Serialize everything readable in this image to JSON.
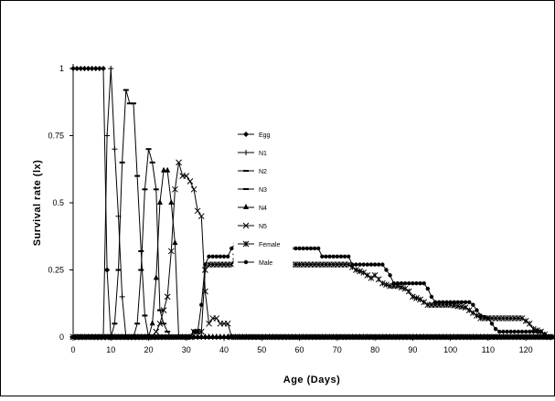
{
  "chart_data": {
    "type": "line",
    "xlabel": "Age (Days)",
    "ylabel": "Survival rate (lx)",
    "xlim": [
      0,
      127
    ],
    "ylim": [
      0,
      1
    ],
    "xticks": [
      "0",
      "10",
      "20",
      "30",
      "40",
      "50",
      "60",
      "70",
      "80",
      "90",
      "100",
      "110",
      "120"
    ],
    "yticks": [
      "0",
      "0.25",
      "0.5",
      "0.75",
      "1"
    ],
    "grid": false,
    "legend_position": "upper-middle",
    "series": [
      {
        "name": "Egg",
        "marker": "diamond",
        "points": [
          [
            0,
            1
          ],
          [
            1,
            1
          ],
          [
            2,
            1
          ],
          [
            3,
            1
          ],
          [
            4,
            1
          ],
          [
            5,
            1
          ],
          [
            6,
            1
          ],
          [
            7,
            1
          ],
          [
            8,
            1
          ],
          [
            9,
            0.25
          ],
          [
            10,
            0
          ],
          [
            11,
            0
          ],
          [
            20,
            0
          ],
          [
            40,
            0
          ],
          [
            127,
            0
          ]
        ]
      },
      {
        "name": "N1",
        "marker": "plus",
        "points": [
          [
            0,
            0
          ],
          [
            8,
            0
          ],
          [
            9,
            0.75
          ],
          [
            10,
            1
          ],
          [
            11,
            0.7
          ],
          [
            12,
            0.45
          ],
          [
            13,
            0.15
          ],
          [
            14,
            0
          ],
          [
            16,
            0
          ],
          [
            127,
            0
          ]
        ]
      },
      {
        "name": "N2",
        "marker": "dash",
        "points": [
          [
            0,
            0
          ],
          [
            10,
            0
          ],
          [
            11,
            0.05
          ],
          [
            12,
            0.25
          ],
          [
            13,
            0.65
          ],
          [
            14,
            0.92
          ],
          [
            15,
            0.87
          ],
          [
            16,
            0.87
          ],
          [
            17,
            0.6
          ],
          [
            18,
            0.32
          ],
          [
            19,
            0.08
          ],
          [
            20,
            0
          ],
          [
            127,
            0
          ]
        ]
      },
      {
        "name": "N3",
        "marker": "dash",
        "points": [
          [
            0,
            0
          ],
          [
            16,
            0
          ],
          [
            17,
            0.05
          ],
          [
            18,
            0.25
          ],
          [
            19,
            0.55
          ],
          [
            20,
            0.7
          ],
          [
            21,
            0.65
          ],
          [
            22,
            0.55
          ],
          [
            23,
            0.1
          ],
          [
            24,
            0.05
          ],
          [
            25,
            0.02
          ],
          [
            26,
            0
          ],
          [
            127,
            0
          ]
        ]
      },
      {
        "name": "N4",
        "marker": "triangle",
        "points": [
          [
            0,
            0
          ],
          [
            20,
            0
          ],
          [
            21,
            0.05
          ],
          [
            22,
            0.22
          ],
          [
            23,
            0.5
          ],
          [
            24,
            0.62
          ],
          [
            25,
            0.62
          ],
          [
            26,
            0.5
          ],
          [
            27,
            0.35
          ],
          [
            28,
            0
          ],
          [
            127,
            0
          ]
        ]
      },
      {
        "name": "N5",
        "marker": "cross",
        "points": [
          [
            0,
            0
          ],
          [
            21,
            0
          ],
          [
            22,
            0.02
          ],
          [
            23,
            0.05
          ],
          [
            24,
            0.1
          ],
          [
            25,
            0.15
          ],
          [
            26,
            0.32
          ],
          [
            27,
            0.55
          ],
          [
            28,
            0.65
          ],
          [
            29,
            0.6
          ],
          [
            30,
            0.6
          ],
          [
            31,
            0.58
          ],
          [
            32,
            0.55
          ],
          [
            33,
            0.47
          ],
          [
            34,
            0.45
          ],
          [
            35,
            0.17
          ],
          [
            36,
            0.05
          ],
          [
            37,
            0.07
          ],
          [
            38,
            0.07
          ],
          [
            39,
            0.05
          ],
          [
            40,
            0.05
          ],
          [
            41,
            0.05
          ],
          [
            42,
            0
          ],
          [
            127,
            0
          ]
        ]
      },
      {
        "name": "Female",
        "marker": "x",
        "points": [
          [
            0,
            0
          ],
          [
            31,
            0
          ],
          [
            32,
            0.02
          ],
          [
            33,
            0.02
          ],
          [
            34,
            0.02
          ],
          [
            35,
            0.25
          ],
          [
            36,
            0.27
          ],
          [
            40,
            0.27
          ],
          [
            42,
            0.27
          ],
          [
            43,
            0.3
          ],
          [
            44,
            0.3
          ],
          [
            45,
            0.27
          ],
          [
            73,
            0.27
          ],
          [
            74,
            0.26
          ],
          [
            75,
            0.25
          ],
          [
            77,
            0.24
          ],
          [
            79,
            0.22
          ],
          [
            80,
            0.23
          ],
          [
            82,
            0.2
          ],
          [
            84,
            0.19
          ],
          [
            86,
            0.19
          ],
          [
            88,
            0.18
          ],
          [
            89,
            0.17
          ],
          [
            90,
            0.15
          ],
          [
            92,
            0.14
          ],
          [
            93,
            0.13
          ],
          [
            94,
            0.12
          ],
          [
            100,
            0.12
          ],
          [
            104,
            0.11
          ],
          [
            105,
            0.1
          ],
          [
            106,
            0.09
          ],
          [
            107,
            0.08
          ],
          [
            108,
            0.07
          ],
          [
            119,
            0.07
          ],
          [
            120,
            0.06
          ],
          [
            121,
            0.05
          ],
          [
            122,
            0.03
          ],
          [
            124,
            0.02
          ],
          [
            125,
            0.01
          ],
          [
            126,
            0
          ],
          [
            127,
            0
          ]
        ]
      },
      {
        "name": "Male",
        "marker": "circle",
        "points": [
          [
            0,
            0
          ],
          [
            31,
            0
          ],
          [
            32,
            0.02
          ],
          [
            33,
            0.02
          ],
          [
            34,
            0.12
          ],
          [
            35,
            0.27
          ],
          [
            36,
            0.3
          ],
          [
            41,
            0.3
          ],
          [
            42,
            0.33
          ],
          [
            43,
            0.35
          ],
          [
            44,
            0.35
          ],
          [
            45,
            0.33
          ],
          [
            65,
            0.33
          ],
          [
            66,
            0.3
          ],
          [
            73,
            0.3
          ],
          [
            74,
            0.27
          ],
          [
            82,
            0.27
          ],
          [
            83,
            0.25
          ],
          [
            84,
            0.23
          ],
          [
            85,
            0.2
          ],
          [
            93,
            0.2
          ],
          [
            94,
            0.18
          ],
          [
            95,
            0.15
          ],
          [
            96,
            0.13
          ],
          [
            105,
            0.13
          ],
          [
            106,
            0.12
          ],
          [
            107,
            0.1
          ],
          [
            108,
            0.08
          ],
          [
            110,
            0.07
          ],
          [
            111,
            0.05
          ],
          [
            112,
            0.03
          ],
          [
            113,
            0.02
          ],
          [
            124,
            0.02
          ],
          [
            125,
            0.01
          ],
          [
            126,
            0
          ],
          [
            127,
            0
          ]
        ]
      }
    ]
  }
}
